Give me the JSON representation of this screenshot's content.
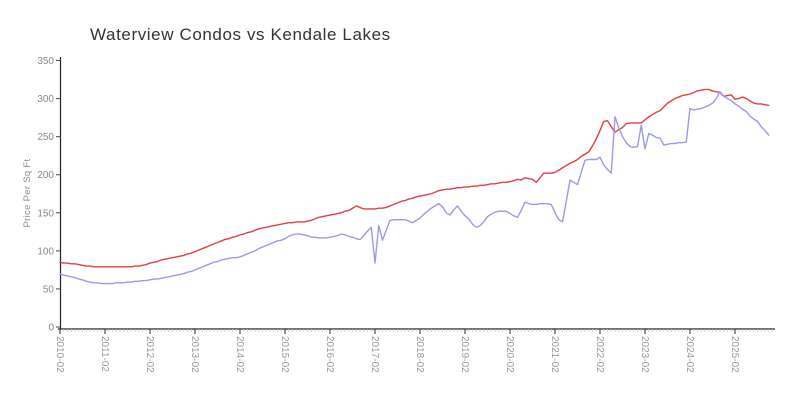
{
  "title": "Waterview Condos vs Kendale Lakes",
  "y_axis": {
    "title": "Price Per Sq Ft"
  },
  "chart_data": {
    "type": "line",
    "title": "Waterview Condos vs Kendale Lakes",
    "xlabel": "",
    "ylabel": "Price Per Sq Ft",
    "ylim": [
      0,
      350
    ],
    "y_ticks": [
      0,
      50,
      100,
      150,
      200,
      250,
      300,
      350
    ],
    "x_tick_labels": [
      "2010-02",
      "2011-02",
      "2012-02",
      "2013-02",
      "2014-02",
      "2015-02",
      "2016-02",
      "2017-02",
      "2018-02",
      "2019-02",
      "2020-02",
      "2021-02",
      "2022-02",
      "2023-02",
      "2024-02",
      "2025-02"
    ],
    "x_start_month": "2010-02",
    "x_interval": "monthly",
    "points_per_series": 190,
    "grid": false,
    "legend": "none",
    "series": [
      {
        "name": "Waterview Condos",
        "color": "#e04040",
        "values": [
          85,
          84,
          84,
          83,
          83,
          82,
          81,
          80,
          80,
          79,
          79,
          79,
          79,
          79,
          79,
          79,
          79,
          79,
          79,
          79,
          80,
          80,
          81,
          82,
          84,
          85,
          86,
          88,
          89,
          90,
          91,
          92,
          93,
          94,
          96,
          97,
          99,
          101,
          103,
          105,
          107,
          109,
          111,
          113,
          115,
          116,
          118,
          119,
          121,
          122,
          124,
          125,
          127,
          129,
          130,
          131,
          132,
          133,
          134,
          135,
          136,
          137,
          137,
          138,
          138,
          138,
          139,
          140,
          142,
          144,
          145,
          146,
          147,
          148,
          149,
          150,
          152,
          153,
          156,
          159,
          157,
          155,
          155,
          155,
          155,
          156,
          156,
          157,
          159,
          161,
          163,
          165,
          166,
          168,
          169,
          171,
          172,
          173,
          174,
          175,
          177,
          179,
          180,
          181,
          181,
          182,
          183,
          183,
          184,
          184,
          185,
          185,
          186,
          186,
          187,
          188,
          188,
          189,
          190,
          190,
          191,
          192,
          194,
          193,
          196,
          195,
          194,
          190,
          196,
          202,
          202,
          202,
          203,
          206,
          209,
          212,
          215,
          217,
          220,
          224,
          227,
          230,
          238,
          247,
          258,
          270,
          271,
          263,
          256,
          259,
          262,
          267,
          268,
          268,
          268,
          268,
          272,
          276,
          279,
          282,
          284,
          289,
          294,
          297,
          300,
          302,
          304,
          305,
          306,
          308,
          310,
          311,
          312,
          312,
          310,
          309,
          308,
          303,
          304,
          305,
          299,
          300,
          302,
          300,
          297,
          294,
          293,
          293,
          292,
          291
        ]
      },
      {
        "name": "Kendale Lakes",
        "color": "#9a9ae8",
        "values": [
          70,
          68,
          67,
          66,
          65,
          63,
          62,
          60,
          59,
          58,
          58,
          57,
          57,
          57,
          57,
          58,
          58,
          58,
          59,
          59,
          60,
          60,
          61,
          61,
          62,
          63,
          63,
          64,
          65,
          66,
          67,
          68,
          69,
          70,
          72,
          73,
          75,
          77,
          79,
          81,
          83,
          85,
          86,
          88,
          89,
          90,
          91,
          91,
          92,
          94,
          96,
          98,
          100,
          103,
          105,
          107,
          109,
          111,
          113,
          114,
          116,
          119,
          121,
          122,
          122,
          121,
          120,
          118,
          118,
          117,
          117,
          117,
          118,
          119,
          120,
          122,
          121,
          119,
          118,
          116,
          115,
          120,
          126,
          131,
          84,
          133,
          114,
          127,
          140,
          141,
          141,
          141,
          141,
          139,
          137,
          140,
          143,
          148,
          152,
          156,
          159,
          162,
          158,
          150,
          147,
          154,
          159,
          152,
          146,
          142,
          135,
          131,
          133,
          138,
          145,
          148,
          151,
          152,
          152,
          152,
          149,
          146,
          144,
          153,
          164,
          162,
          161,
          161,
          162,
          162,
          162,
          161,
          150,
          141,
          138,
          165,
          193,
          190,
          187,
          203,
          219,
          220,
          220,
          220,
          223,
          213,
          207,
          202,
          276,
          262,
          250,
          242,
          237,
          236,
          237,
          265,
          234,
          254,
          252,
          249,
          248,
          239,
          240,
          241,
          241,
          242,
          242,
          243,
          287,
          285,
          286,
          287,
          289,
          291,
          294,
          300,
          309,
          303,
          300,
          297,
          293,
          290,
          286,
          283,
          277,
          273,
          270,
          263,
          258,
          252
        ]
      }
    ]
  },
  "colors": {
    "axis": "#222222",
    "major_tick": "#555555",
    "minor_tick": "#c8c8c8",
    "label": "#8a8a8a"
  }
}
